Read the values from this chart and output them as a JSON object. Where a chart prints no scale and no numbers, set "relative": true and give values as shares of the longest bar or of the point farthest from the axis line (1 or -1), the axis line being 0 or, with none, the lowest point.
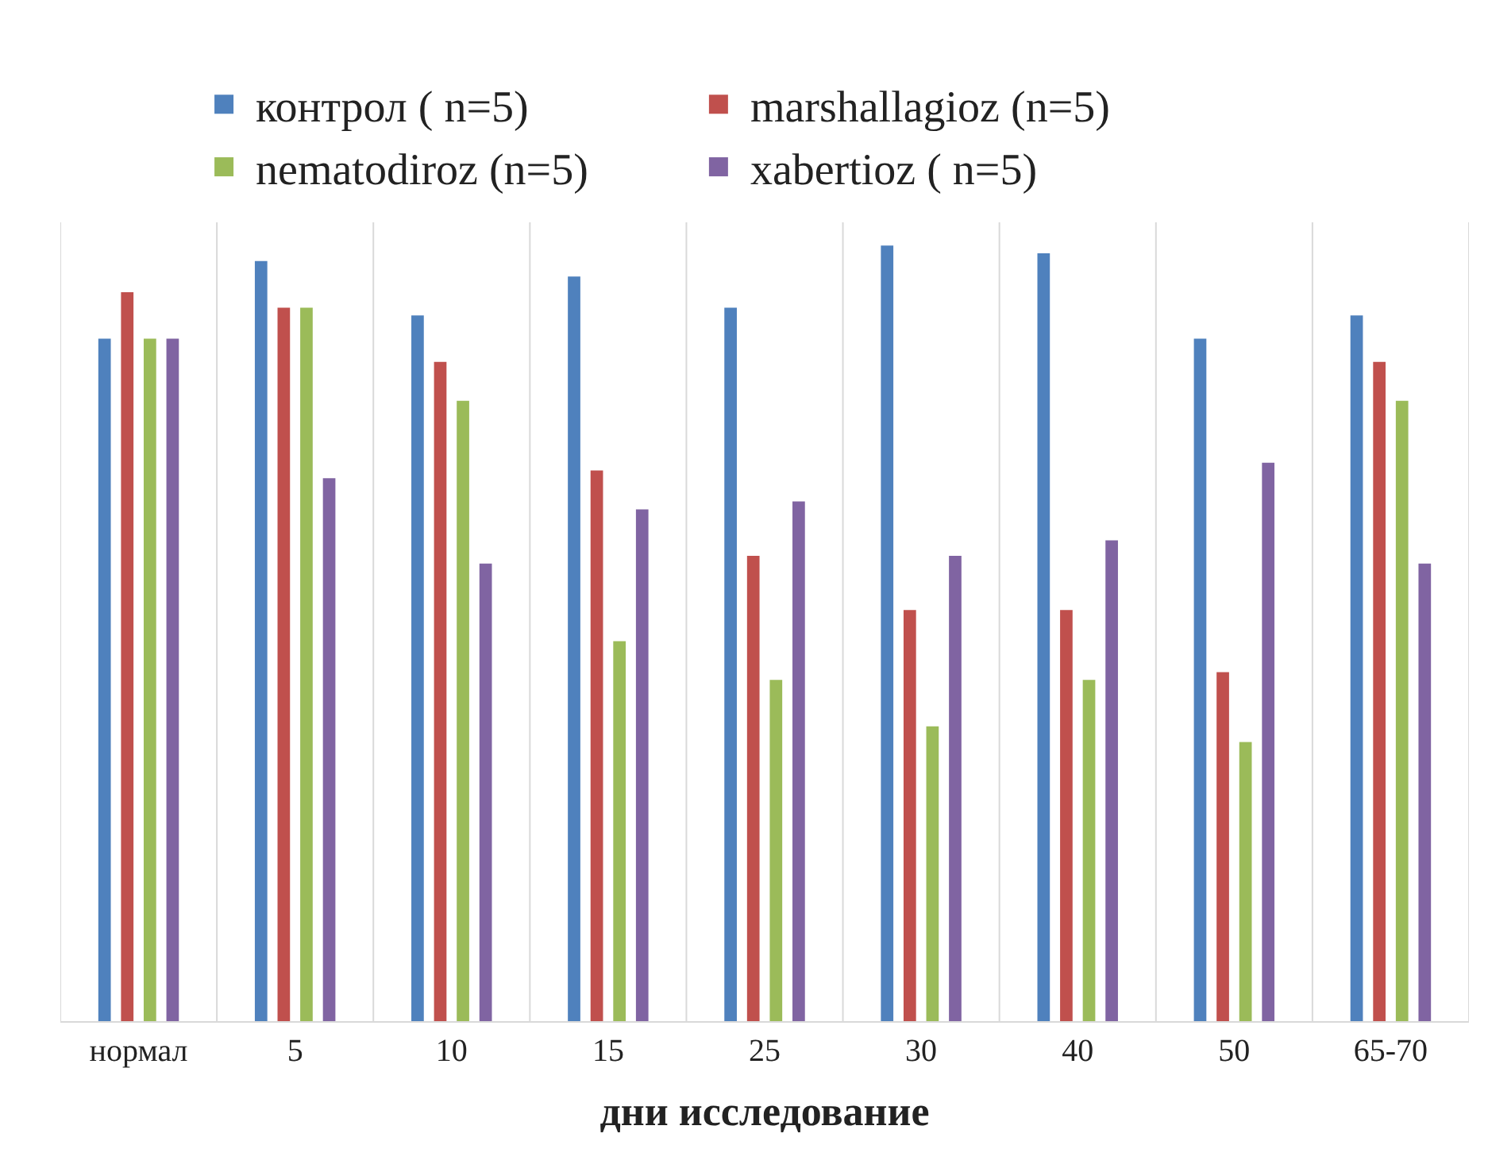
{
  "chart_data": {
    "type": "bar",
    "relative": true,
    "xlabel": "дни исследование",
    "categories": [
      "нормал",
      "5",
      "10",
      "15",
      "25",
      "30",
      "40",
      "50",
      "65-70"
    ],
    "series": [
      {
        "name": "контрол ( n=5)",
        "color": "#4f81bd",
        "values": [
          0.88,
          0.98,
          0.91,
          0.96,
          0.92,
          1,
          0.99,
          0.88,
          0.91
        ]
      },
      {
        "name": "marshallagioz (n=5)",
        "color": "#c0504d",
        "values": [
          0.94,
          0.92,
          0.85,
          0.71,
          0.6,
          0.53,
          0.53,
          0.45,
          0.85
        ]
      },
      {
        "name": "nematodiroz (n=5)",
        "color": "#9bbb59",
        "values": [
          0.88,
          0.92,
          0.8,
          0.49,
          0.44,
          0.38,
          0.44,
          0.36,
          0.8
        ]
      },
      {
        "name": "xabertioz ( n=5)",
        "color": "#8064a2",
        "values": [
          0.88,
          0.7,
          0.59,
          0.66,
          0.67,
          0.6,
          0.62,
          0.72,
          0.59
        ]
      }
    ],
    "grid": "x",
    "legend": "top"
  }
}
